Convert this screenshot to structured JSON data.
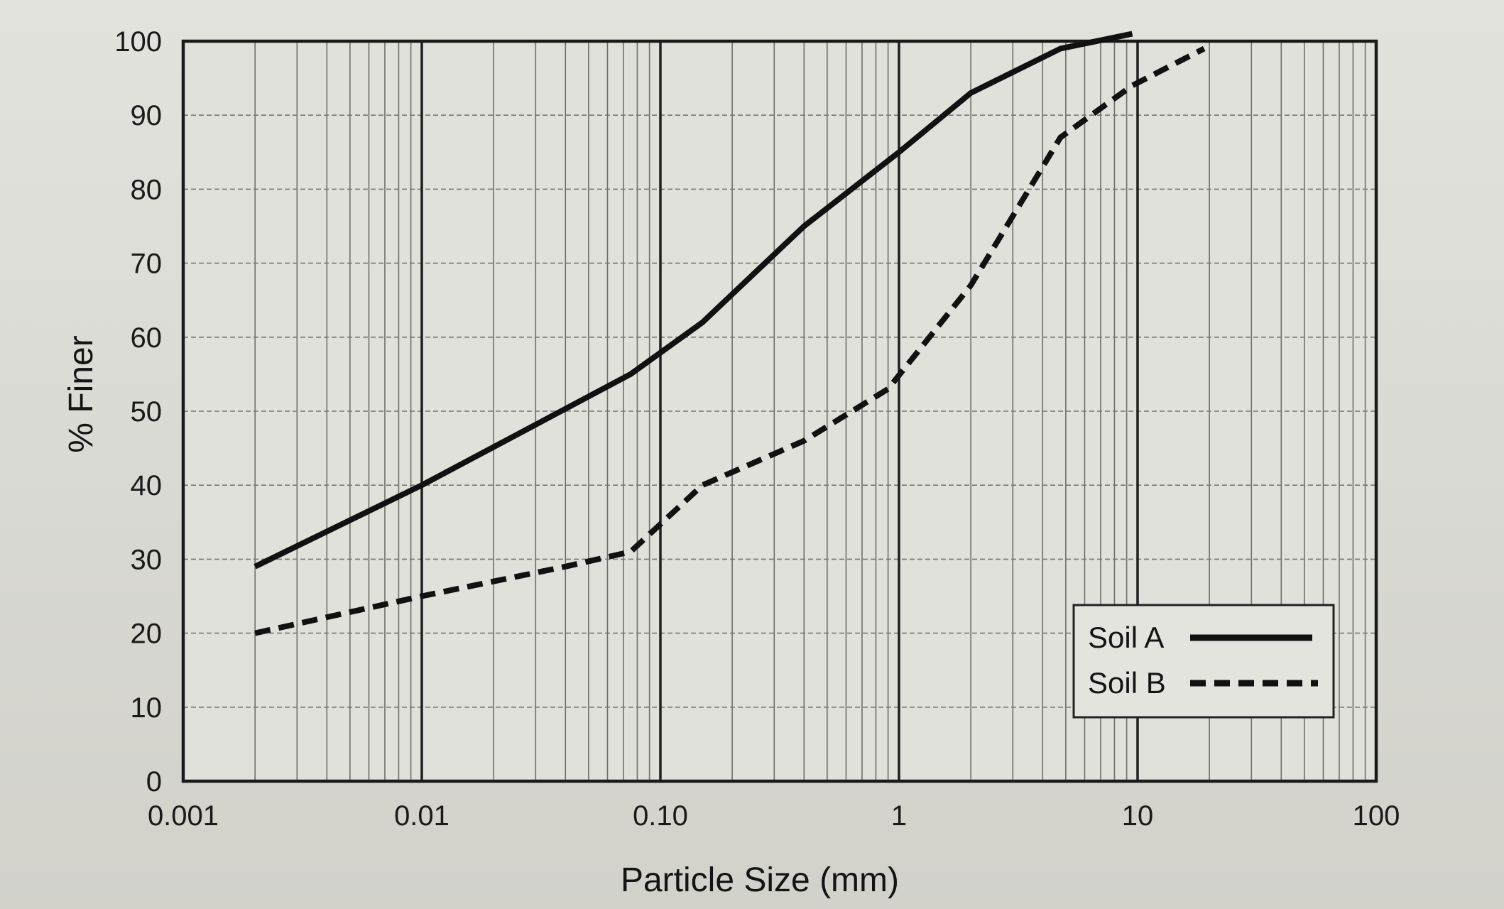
{
  "chart_data": {
    "type": "line",
    "title": "",
    "xlabel": "Particle Size (mm)",
    "ylabel": "% Finer",
    "x_scale": "log",
    "xlim": [
      0.001,
      100
    ],
    "ylim": [
      0,
      100
    ],
    "x_tick_values": [
      0.001,
      0.01,
      0.1,
      1,
      10,
      100
    ],
    "x_tick_labels": [
      "0.001",
      "0.01",
      "0.10",
      "1",
      "10",
      "100"
    ],
    "y_tick_values": [
      0,
      10,
      20,
      30,
      40,
      50,
      60,
      70,
      80,
      90,
      100
    ],
    "y_tick_labels": [
      "0",
      "10",
      "20",
      "30",
      "40",
      "50",
      "60",
      "70",
      "80",
      "90",
      "100"
    ],
    "grid": true,
    "legend_position": "bottom-right",
    "series": [
      {
        "name": "Soil A",
        "style": "solid",
        "color": "#111111",
        "x": [
          0.002,
          0.01,
          0.075,
          0.15,
          0.4,
          1.0,
          2.0,
          4.75,
          9.5
        ],
        "y": [
          29,
          40,
          55,
          62,
          75,
          85,
          93,
          99,
          101
        ]
      },
      {
        "name": "Soil B",
        "style": "dashed",
        "color": "#111111",
        "x": [
          0.002,
          0.01,
          0.04,
          0.075,
          0.15,
          0.4,
          0.9,
          2.0,
          4.75,
          9.5,
          19
        ],
        "y": [
          20,
          25,
          29,
          31,
          40,
          46,
          53,
          67,
          87,
          94,
          99
        ]
      }
    ]
  },
  "ui": {
    "background": "#dcdcd6",
    "grid_color": "#8a8a86",
    "major_grid_color": "#2a2a2a",
    "legend_background": "#e4e4df"
  }
}
